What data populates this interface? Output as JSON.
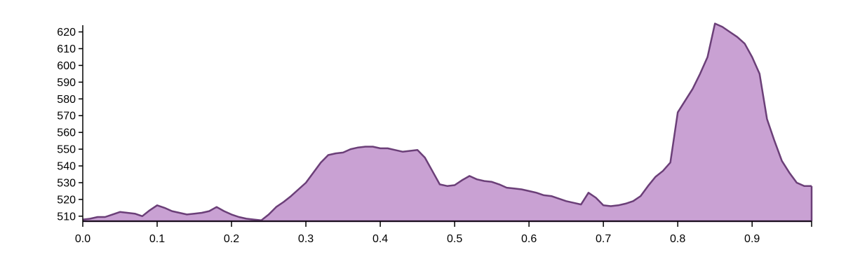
{
  "chart_data": {
    "type": "area",
    "title": "",
    "xlabel": "",
    "ylabel": "",
    "xlim": [
      0,
      0.98
    ],
    "ylim": [
      507,
      624
    ],
    "x_ticks": [
      "0.0",
      "0.1",
      "0.2",
      "0.3",
      "0.4",
      "0.5",
      "0.6",
      "0.7",
      "0.8",
      "0.9"
    ],
    "y_ticks": [
      "510",
      "520",
      "530",
      "540",
      "550",
      "560",
      "570",
      "580",
      "590",
      "600",
      "610",
      "620"
    ],
    "fill_color": "#c9a1d3",
    "line_color": "#6b3f78",
    "grid": false,
    "series": [
      {
        "x": [
          0.0,
          0.01,
          0.02,
          0.03,
          0.04,
          0.05,
          0.06,
          0.07,
          0.08,
          0.09,
          0.1,
          0.11,
          0.12,
          0.13,
          0.14,
          0.15,
          0.16,
          0.17,
          0.18,
          0.19,
          0.2,
          0.21,
          0.22,
          0.23,
          0.24,
          0.25,
          0.26,
          0.27,
          0.28,
          0.29,
          0.3,
          0.31,
          0.32,
          0.33,
          0.34,
          0.35,
          0.36,
          0.37,
          0.38,
          0.39,
          0.4,
          0.41,
          0.42,
          0.43,
          0.44,
          0.45,
          0.46,
          0.47,
          0.48,
          0.49,
          0.5,
          0.51,
          0.52,
          0.53,
          0.54,
          0.55,
          0.56,
          0.57,
          0.58,
          0.59,
          0.6,
          0.61,
          0.62,
          0.63,
          0.64,
          0.65,
          0.66,
          0.67,
          0.68,
          0.69,
          0.7,
          0.71,
          0.72,
          0.73,
          0.74,
          0.75,
          0.76,
          0.77,
          0.78,
          0.79,
          0.8,
          0.81,
          0.82,
          0.83,
          0.84,
          0.85,
          0.86,
          0.87,
          0.88,
          0.89,
          0.9,
          0.91,
          0.92,
          0.93,
          0.94,
          0.95,
          0.96,
          0.97,
          0.98
        ],
        "values": [
          508,
          508.5,
          509.5,
          509.5,
          511,
          512.5,
          512,
          511.5,
          510,
          513.5,
          516.5,
          515,
          513,
          512,
          511,
          511.5,
          512,
          513,
          515.5,
          513,
          511,
          509.5,
          508.5,
          508,
          507.5,
          511,
          515.5,
          518.5,
          522,
          526,
          530,
          536,
          542,
          546.5,
          547.5,
          548,
          550,
          551,
          551.5,
          551.5,
          550.5,
          550.5,
          549.5,
          548.5,
          549,
          549.5,
          545,
          537,
          529,
          528,
          528.5,
          531.5,
          534,
          532,
          531,
          530.5,
          529,
          527,
          526.5,
          526,
          525,
          524,
          522.5,
          522,
          520.5,
          519,
          518,
          517,
          524,
          521,
          516.5,
          516,
          516.5,
          517.5,
          519,
          522,
          528,
          533.5,
          537,
          542,
          572,
          579,
          586,
          595,
          605,
          625,
          623,
          620,
          617,
          613,
          605,
          595,
          568,
          555,
          543,
          536,
          530,
          528,
          528
        ]
      }
    ]
  }
}
